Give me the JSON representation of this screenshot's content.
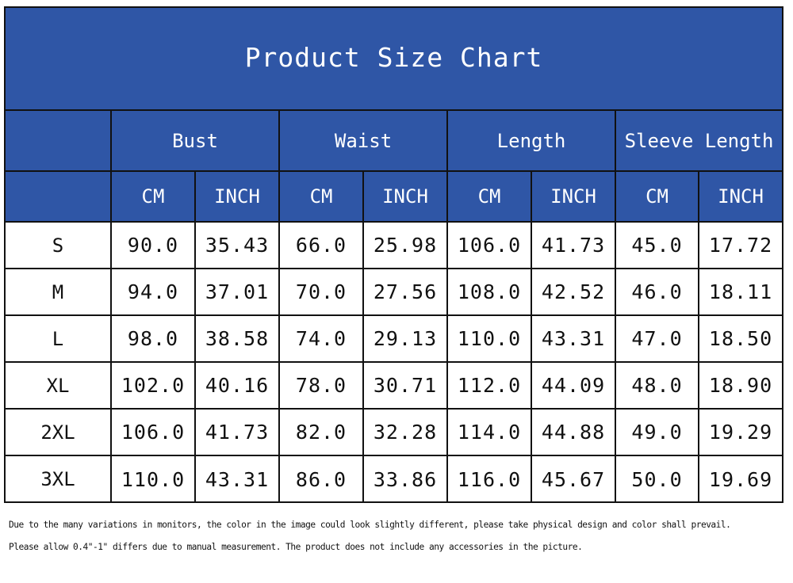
{
  "title": "Product Size Chart",
  "colors": {
    "header_bg": "#2f56a6",
    "header_text": "#ffffff",
    "grid": "#111111",
    "body_text": "#111111"
  },
  "groups": [
    "Bust",
    "Waist",
    "Length",
    "Sleeve Length"
  ],
  "units": [
    "CM",
    "INCH",
    "CM",
    "INCH",
    "CM",
    "INCH",
    "CM",
    "INCH"
  ],
  "rows": [
    {
      "size": "S",
      "values": [
        "90.0",
        "35.43",
        "66.0",
        "25.98",
        "106.0",
        "41.73",
        "45.0",
        "17.72"
      ]
    },
    {
      "size": "M",
      "values": [
        "94.0",
        "37.01",
        "70.0",
        "27.56",
        "108.0",
        "42.52",
        "46.0",
        "18.11"
      ]
    },
    {
      "size": "L",
      "values": [
        "98.0",
        "38.58",
        "74.0",
        "29.13",
        "110.0",
        "43.31",
        "47.0",
        "18.50"
      ]
    },
    {
      "size": "XL",
      "values": [
        "102.0",
        "40.16",
        "78.0",
        "30.71",
        "112.0",
        "44.09",
        "48.0",
        "18.90"
      ]
    },
    {
      "size": "2XL",
      "values": [
        "106.0",
        "41.73",
        "82.0",
        "32.28",
        "114.0",
        "44.88",
        "49.0",
        "19.29"
      ]
    },
    {
      "size": "3XL",
      "values": [
        "110.0",
        "43.31",
        "86.0",
        "33.86",
        "116.0",
        "45.67",
        "50.0",
        "19.69"
      ]
    }
  ],
  "notes": [
    "Due to the many variations in monitors, the color in the image could look slightly different, please take physical design and color shall prevail.",
    "Please allow 0.4\"-1\" differs due to manual measurement. The product does not include any accessories in the picture."
  ]
}
